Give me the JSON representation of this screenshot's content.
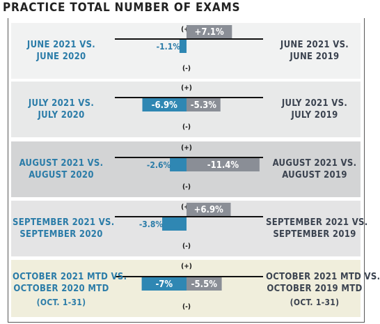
{
  "title": "PRACTICE TOTAL NUMBER OF EXAMS",
  "colors": {
    "positive_bar": "#8a8e96",
    "negative_bar": "#2f87b3",
    "left_text": "#2b7ca8",
    "right_text": "#3b4350",
    "panel_backgrounds": [
      "#f1f2f2",
      "#e8e9e9",
      "#d3d4d5",
      "#e4e4e5",
      "#f0eedc"
    ]
  },
  "chart_data": {
    "type": "bar",
    "axis_symbols": {
      "top": "(+)",
      "bottom": "(-)"
    },
    "rows": [
      {
        "left_label": [
          "JUNE 2021 VS.",
          "JUNE 2020"
        ],
        "right_label": [
          "JUNE 2021 VS.",
          "JUNE 2019"
        ],
        "vs_prior_year": {
          "value": -1.1,
          "label": "-1.1%"
        },
        "vs_2019": {
          "value": 7.1,
          "label": "+7.1%"
        }
      },
      {
        "left_label": [
          "JULY 2021 VS.",
          "JULY 2020"
        ],
        "right_label": [
          "JULY 2021 VS.",
          "JULY 2019"
        ],
        "vs_prior_year": {
          "value": -6.9,
          "label": "-6.9%"
        },
        "vs_2019": {
          "value": -5.3,
          "label": "-5.3%"
        }
      },
      {
        "left_label": [
          "AUGUST 2021 VS.",
          "AUGUST 2020"
        ],
        "right_label": [
          "AUGUST 2021 VS.",
          "AUGUST 2019"
        ],
        "vs_prior_year": {
          "value": -2.6,
          "label": "-2.6%"
        },
        "vs_2019": {
          "value": -11.4,
          "label": "-11.4%"
        }
      },
      {
        "left_label": [
          "SEPTEMBER 2021 VS.",
          "SEPTEMBER 2020"
        ],
        "right_label": [
          "SEPTEMBER 2021 VS.",
          "SEPTEMBER 2019"
        ],
        "vs_prior_year": {
          "value": -3.8,
          "label": "-3.8%"
        },
        "vs_2019": {
          "value": 6.9,
          "label": "+6.9%"
        }
      },
      {
        "left_label": [
          "OCTOBER 2021 MTD VS.",
          "OCTOBER 2020 MTD",
          "(OCT. 1-31)"
        ],
        "right_label": [
          "OCTOBER 2021 MTD VS.",
          "OCTOBER 2019 MTD",
          "(OCT. 1-31)"
        ],
        "vs_prior_year": {
          "value": -7,
          "label": "-7%"
        },
        "vs_2019": {
          "value": -5.5,
          "label": "-5.5%"
        }
      }
    ]
  }
}
